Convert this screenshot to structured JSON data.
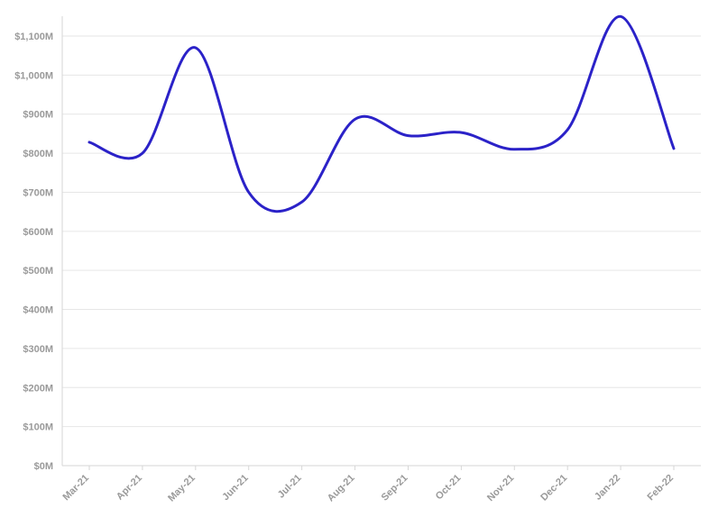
{
  "chart_data": {
    "type": "line",
    "categories": [
      "Mar-21",
      "Apr-21",
      "May-21",
      "Jun-21",
      "Jul-21",
      "Aug-21",
      "Sep-21",
      "Oct-21",
      "Nov-21",
      "Dec-21",
      "Jan-22",
      "Feb-22"
    ],
    "series": [
      {
        "values": [
          828,
          800,
          1070,
          700,
          675,
          887,
          845,
          853,
          810,
          860,
          1150,
          812
        ]
      }
    ],
    "yticks": [
      0,
      100,
      200,
      300,
      400,
      500,
      600,
      700,
      800,
      900,
      1000,
      1100
    ],
    "ytick_labels": [
      "$0M",
      "$100M",
      "$200M",
      "$300M",
      "$400M",
      "$500M",
      "$600M",
      "$700M",
      "$800M",
      "$900M",
      "$1,000M",
      "$1,100M"
    ],
    "ylim": [
      0,
      1200
    ],
    "grid": true,
    "legend": "none",
    "line_color": "#2b22c8",
    "title": "",
    "xlabel": "",
    "ylabel": ""
  }
}
